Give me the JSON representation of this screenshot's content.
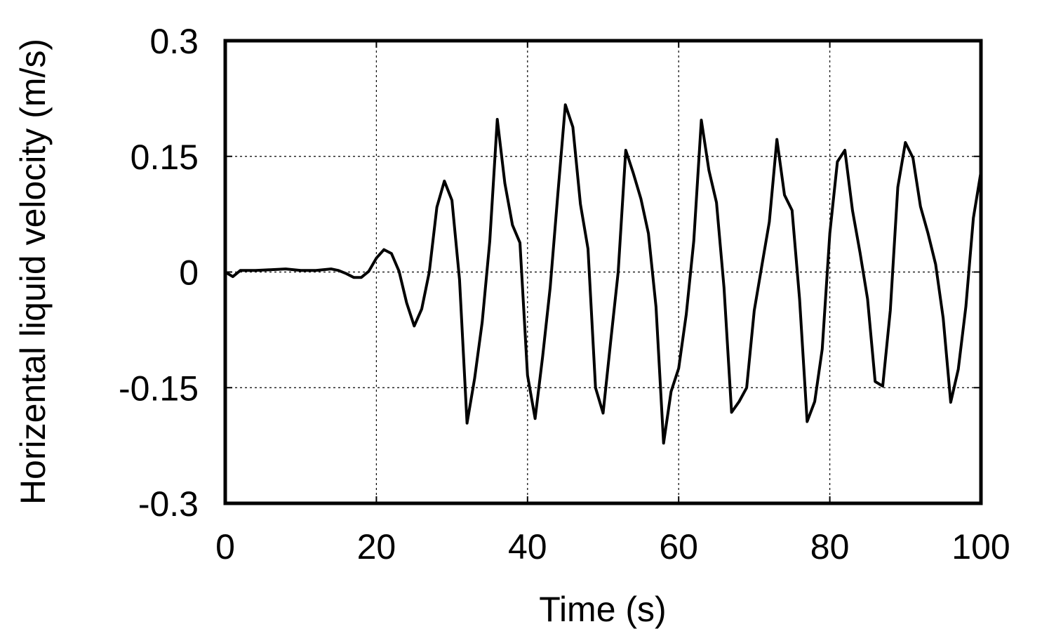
{
  "chart_data": {
    "type": "line",
    "title": "",
    "xlabel": "Time (s)",
    "ylabel": "Horizental liquid velocity (m/s)",
    "xlim": [
      0,
      100
    ],
    "ylim": [
      -0.3,
      0.3
    ],
    "xticks": [
      0,
      20,
      40,
      60,
      80,
      100
    ],
    "yticks": [
      -0.3,
      -0.15,
      0,
      0.15,
      0.3
    ],
    "xtick_labels": [
      "0",
      "20",
      "40",
      "60",
      "80",
      "100"
    ],
    "ytick_labels": [
      "-0.3",
      "-0.15",
      "0",
      "0.15",
      "0.3"
    ],
    "grid": true,
    "legend": "none",
    "series": [
      {
        "color": "#000000",
        "x": [
          0,
          1,
          2,
          4,
          6,
          8,
          10,
          12,
          14,
          15,
          16,
          17,
          18,
          19,
          20,
          21,
          22,
          23,
          24,
          25,
          26,
          27,
          28,
          29,
          30,
          31,
          32,
          33,
          34,
          35,
          36,
          37,
          38,
          39,
          40,
          41,
          42,
          43,
          44,
          45,
          46,
          47,
          48,
          49,
          50,
          51,
          52,
          53,
          54,
          55,
          56,
          57,
          58,
          59,
          60,
          61,
          62,
          63,
          64,
          65,
          66,
          67,
          68,
          69,
          70,
          71,
          72,
          73,
          74,
          75,
          76,
          77,
          78,
          79,
          80,
          81,
          82,
          83,
          84,
          85,
          86,
          87,
          88,
          89,
          90,
          91,
          92,
          93,
          94,
          95,
          96,
          97,
          98,
          99,
          100
        ],
        "y": [
          0.0,
          -0.006,
          0.002,
          0.002,
          0.003,
          0.004,
          0.002,
          0.002,
          0.004,
          0.002,
          -0.002,
          -0.007,
          -0.007,
          0.001,
          0.018,
          0.029,
          0.024,
          0.001,
          -0.04,
          -0.07,
          -0.048,
          0.0,
          0.084,
          0.118,
          0.093,
          -0.01,
          -0.196,
          -0.138,
          -0.065,
          0.04,
          0.198,
          0.115,
          0.061,
          0.038,
          -0.134,
          -0.19,
          -0.11,
          -0.02,
          0.1,
          0.217,
          0.188,
          0.088,
          0.03,
          -0.15,
          -0.183,
          -0.09,
          0.0,
          0.158,
          0.128,
          0.095,
          0.05,
          -0.045,
          -0.222,
          -0.155,
          -0.125,
          -0.055,
          0.04,
          0.197,
          0.132,
          0.09,
          -0.02,
          -0.182,
          -0.168,
          -0.15,
          -0.05,
          0.008,
          0.065,
          0.172,
          0.1,
          0.08,
          -0.035,
          -0.194,
          -0.168,
          -0.1,
          0.05,
          0.143,
          0.158,
          0.08,
          0.025,
          -0.035,
          -0.142,
          -0.148,
          -0.05,
          0.11,
          0.168,
          0.148,
          0.085,
          0.05,
          0.01,
          -0.06,
          -0.169,
          -0.126,
          -0.045,
          0.07,
          0.13
        ]
      }
    ]
  }
}
